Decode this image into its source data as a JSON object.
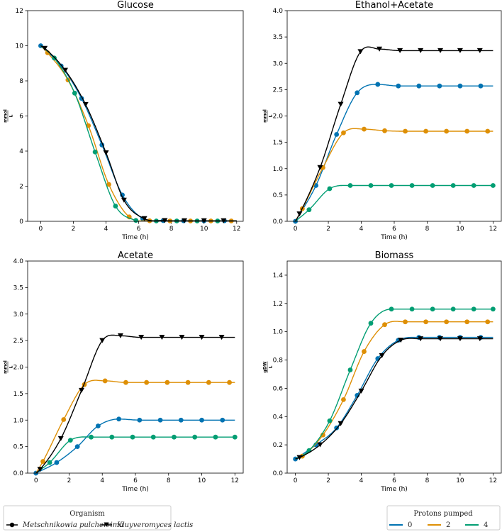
{
  "chart_data": [
    {
      "type": "line",
      "title": "Glucose",
      "xlabel": "Time (h)",
      "ylabel_num": "mmol",
      "ylabel_den": "L",
      "xlim": [
        -0.8,
        12.4
      ],
      "ylim": [
        0,
        12
      ],
      "xticks": [
        0,
        2,
        4,
        6,
        8,
        10,
        12
      ],
      "yticks": [
        0,
        2,
        4,
        6,
        8,
        10,
        12
      ],
      "ytick_fmt": 0,
      "series": [
        {
          "name": "Metschnikowia pulcherrima, 0",
          "color": "#0173b2",
          "marker": "circle",
          "x": [
            0,
            1.25,
            2.5,
            3.75,
            5,
            6.25,
            7.5,
            8.75,
            10,
            11.25
          ],
          "y": [
            10,
            8.85,
            7.0,
            4.35,
            1.5,
            0.15,
            0.04,
            0.03,
            0.03,
            0.03
          ]
        },
        {
          "name": "Metschnikowia pulcherrima, 2",
          "color": "#de8f05",
          "marker": "circle",
          "x": [
            0.42,
            1.67,
            2.92,
            4.17,
            5.42,
            6.67,
            7.92,
            9.17,
            10.42,
            11.67
          ],
          "y": [
            9.6,
            8.05,
            5.45,
            2.1,
            0.25,
            0.03,
            0.02,
            0.02,
            0.02,
            0.02
          ]
        },
        {
          "name": "Metschnikowia pulcherrima, 4",
          "color": "#029e73",
          "marker": "circle",
          "x": [
            0.83,
            2.08,
            3.33,
            4.58,
            5.83,
            7.08,
            8.33,
            9.58,
            10.83
          ],
          "y": [
            9.3,
            7.3,
            3.95,
            0.87,
            0.05,
            0.02,
            0.02,
            0.02,
            0.02
          ]
        },
        {
          "name": "Kluyveromyces lactis",
          "color": "#000000",
          "marker": "triangle",
          "x": [
            0.25,
            1.5,
            2.75,
            4,
            5.1,
            6.35,
            7.6,
            8.8,
            10,
            11.2
          ],
          "y": [
            9.85,
            8.6,
            6.65,
            3.9,
            1.2,
            0.15,
            0.04,
            0.03,
            0.03,
            0.03
          ]
        }
      ]
    },
    {
      "type": "line",
      "title": "Ethanol+Acetate",
      "xlabel": "Time (h)",
      "ylabel_num": "mmol",
      "ylabel_den": "L",
      "xlim": [
        -0.5,
        12.5
      ],
      "ylim": [
        0,
        4
      ],
      "xticks": [
        0,
        2,
        4,
        6,
        8,
        10,
        12
      ],
      "yticks": [
        0,
        0.5,
        1.0,
        1.5,
        2.0,
        2.5,
        3.0,
        3.5,
        4.0
      ],
      "ytick_fmt": 1,
      "series": [
        {
          "name": "Metschnikowia pulcherrima, 0",
          "color": "#0173b2",
          "marker": "circle",
          "x": [
            0,
            1.25,
            2.5,
            3.75,
            5,
            6.25,
            7.5,
            8.75,
            10,
            11.25
          ],
          "y": [
            0,
            0.68,
            1.65,
            2.44,
            2.6,
            2.57,
            2.57,
            2.57,
            2.57,
            2.57
          ]
        },
        {
          "name": "Metschnikowia pulcherrima, 2",
          "color": "#de8f05",
          "marker": "circle",
          "x": [
            0.42,
            1.67,
            2.92,
            4.17,
            5.42,
            6.67,
            7.92,
            9.17,
            10.42,
            11.67
          ],
          "y": [
            0.24,
            1.02,
            1.68,
            1.75,
            1.72,
            1.71,
            1.71,
            1.71,
            1.71,
            1.71
          ]
        },
        {
          "name": "Metschnikowia pulcherrima, 4",
          "color": "#029e73",
          "marker": "circle",
          "x": [
            0.83,
            2.08,
            3.33,
            4.58,
            5.83,
            7.08,
            8.33,
            9.58,
            10.83,
            12.0
          ],
          "y": [
            0.22,
            0.62,
            0.68,
            0.68,
            0.68,
            0.68,
            0.68,
            0.68,
            0.68,
            0.68
          ]
        },
        {
          "name": "Kluyveromyces lactis",
          "color": "#000000",
          "marker": "triangle",
          "x": [
            0.25,
            1.5,
            2.75,
            3.95,
            5.1,
            6.35,
            7.6,
            8.8,
            10,
            11.2
          ],
          "y": [
            0.14,
            1.02,
            2.22,
            3.22,
            3.27,
            3.24,
            3.24,
            3.24,
            3.24,
            3.24
          ]
        }
      ]
    },
    {
      "type": "line",
      "title": "Acetate",
      "xlabel": "Time (h)",
      "ylabel_num": "mmol",
      "ylabel_den": "L",
      "xlim": [
        -0.5,
        12.5
      ],
      "ylim": [
        0,
        4
      ],
      "xticks": [
        0,
        2,
        4,
        6,
        8,
        10,
        12
      ],
      "yticks": [
        0,
        0.5,
        1.0,
        1.5,
        2.0,
        2.5,
        3.0,
        3.5,
        4.0
      ],
      "ytick_fmt": 1,
      "series": [
        {
          "name": "Metschnikowia pulcherrima, 0",
          "color": "#0173b2",
          "marker": "circle",
          "x": [
            0,
            1.25,
            2.5,
            3.75,
            5,
            6.25,
            7.5,
            8.75,
            10,
            11.25
          ],
          "y": [
            0,
            0.2,
            0.5,
            0.89,
            1.02,
            1.0,
            1.0,
            1.0,
            1.0,
            1.0
          ]
        },
        {
          "name": "Metschnikowia pulcherrima, 2",
          "color": "#de8f05",
          "marker": "circle",
          "x": [
            0.42,
            1.67,
            2.92,
            4.17,
            5.42,
            6.67,
            7.92,
            9.17,
            10.42,
            11.67
          ],
          "y": [
            0.22,
            1.01,
            1.67,
            1.74,
            1.71,
            1.71,
            1.71,
            1.71,
            1.71,
            1.71
          ]
        },
        {
          "name": "Metschnikowia pulcherrima, 4",
          "color": "#029e73",
          "marker": "circle",
          "x": [
            0.83,
            2.08,
            3.33,
            4.58,
            5.83,
            7.08,
            8.33,
            9.58,
            10.83,
            12.0
          ],
          "y": [
            0.2,
            0.62,
            0.68,
            0.68,
            0.68,
            0.68,
            0.68,
            0.68,
            0.68,
            0.68
          ]
        },
        {
          "name": "Kluyveromyces lactis",
          "color": "#000000",
          "marker": "triangle",
          "x": [
            0.25,
            1.5,
            2.75,
            4,
            5.1,
            6.35,
            7.6,
            8.8,
            10,
            11.2
          ],
          "y": [
            0.07,
            0.65,
            1.56,
            2.5,
            2.59,
            2.56,
            2.56,
            2.56,
            2.56,
            2.56
          ]
        }
      ]
    },
    {
      "type": "line",
      "title": "Biomass",
      "xlabel": "Time (h)",
      "ylabel_num": "gDW",
      "ylabel_den": "L",
      "xlim": [
        -0.5,
        12.5
      ],
      "ylim": [
        0,
        1.5
      ],
      "xticks": [
        0,
        2,
        4,
        6,
        8,
        10,
        12
      ],
      "yticks": [
        0,
        0.2,
        0.4,
        0.6,
        0.8,
        1.0,
        1.2,
        1.4
      ],
      "ytick_fmt": 1,
      "series": [
        {
          "name": "Metschnikowia pulcherrima, 0",
          "color": "#0173b2",
          "marker": "circle",
          "x": [
            0,
            1.25,
            2.5,
            3.75,
            5,
            6.25,
            7.5,
            8.75,
            10,
            11.25
          ],
          "y": [
            0.1,
            0.2,
            0.32,
            0.55,
            0.81,
            0.94,
            0.96,
            0.96,
            0.96,
            0.96
          ]
        },
        {
          "name": "Metschnikowia pulcherrima, 2",
          "color": "#de8f05",
          "marker": "circle",
          "x": [
            0.42,
            1.67,
            2.92,
            4.17,
            5.42,
            6.67,
            7.92,
            9.17,
            10.42,
            11.67
          ],
          "y": [
            0.12,
            0.27,
            0.52,
            0.86,
            1.05,
            1.07,
            1.07,
            1.07,
            1.07,
            1.07
          ]
        },
        {
          "name": "Metschnikowia pulcherrima, 4",
          "color": "#029e73",
          "marker": "circle",
          "x": [
            0.83,
            2.08,
            3.33,
            4.58,
            5.83,
            7.08,
            8.33,
            9.58,
            10.83,
            12.0
          ],
          "y": [
            0.16,
            0.37,
            0.73,
            1.06,
            1.16,
            1.16,
            1.16,
            1.16,
            1.16,
            1.16
          ]
        },
        {
          "name": "Kluyveromyces lactis",
          "color": "#000000",
          "marker": "triangle",
          "x": [
            0.25,
            1.5,
            2.75,
            4,
            5.25,
            6.4,
            7.6,
            8.8,
            10,
            11.2
          ],
          "y": [
            0.11,
            0.2,
            0.35,
            0.58,
            0.83,
            0.94,
            0.95,
            0.95,
            0.95,
            0.95
          ]
        }
      ]
    }
  ],
  "legend_organism": {
    "title": "Organism",
    "items": [
      {
        "label": "Metschnikowia pulcherrima",
        "marker": "circle"
      },
      {
        "label": "Kluyveromyces lactis",
        "marker": "triangle"
      }
    ]
  },
  "legend_protons": {
    "title": "Protons pumped",
    "items": [
      {
        "label": "0",
        "color": "#0173b2"
      },
      {
        "label": "2",
        "color": "#de8f05"
      },
      {
        "label": "4",
        "color": "#029e73"
      }
    ]
  }
}
